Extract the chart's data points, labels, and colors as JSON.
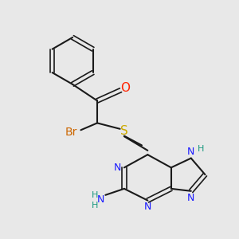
{
  "background_color": "#e8e8e8",
  "bond_color": "#1a1a1a",
  "title": "",
  "atoms": {
    "O": {
      "color": "#ff2200",
      "size": 11
    },
    "N": {
      "color": "#1a1aff",
      "size": 10
    },
    "S": {
      "color": "#ccaa00",
      "size": 11
    },
    "Br": {
      "color": "#cc6600",
      "size": 10
    },
    "H": {
      "color": "#1a9980",
      "size": 9
    },
    "NH2_N": {
      "color": "#1a1aff",
      "size": 10
    },
    "NH2_H": {
      "color": "#1a9980",
      "size": 9
    }
  },
  "figsize": [
    3.0,
    3.0
  ],
  "dpi": 100
}
